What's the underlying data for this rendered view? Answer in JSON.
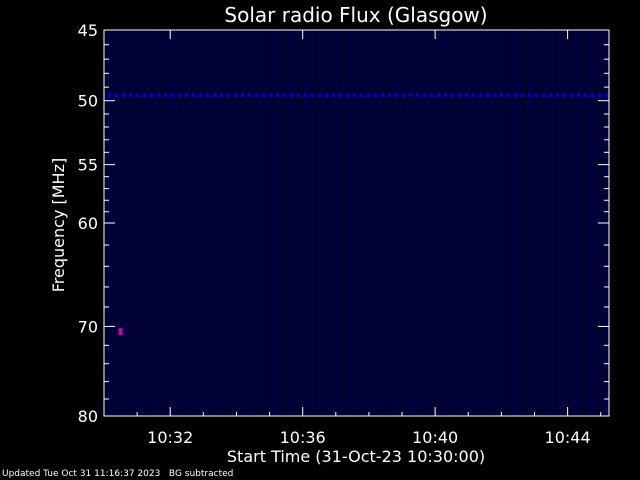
{
  "footer": {
    "updated": "Updated Tue Oct 31 11:16:37 2023",
    "note": "BG subtracted"
  },
  "chart_data": {
    "type": "heatmap",
    "title": "Solar radio Flux (Glasgow)",
    "xlabel": "Start Time (31-Oct-23 10:30:00)",
    "ylabel": "Frequency [MHz]",
    "x_range": [
      "10:30:00",
      "10:45:15"
    ],
    "ylim": [
      45,
      80
    ],
    "y_scale": "log",
    "x_ticks": [
      "10:32",
      "10:36",
      "10:40",
      "10:44"
    ],
    "y_ticks": [
      45,
      50,
      55,
      60,
      70,
      80
    ],
    "background_color": "#000033",
    "features": [
      {
        "description": "interference band",
        "frequency_mhz": 49.6,
        "time_start": "10:30:00",
        "time_end": "10:45:15",
        "color": "#0000cc"
      },
      {
        "description": "burst",
        "frequency_mhz": 70.6,
        "time": "10:30:30",
        "color": "#cc00aa"
      }
    ]
  }
}
